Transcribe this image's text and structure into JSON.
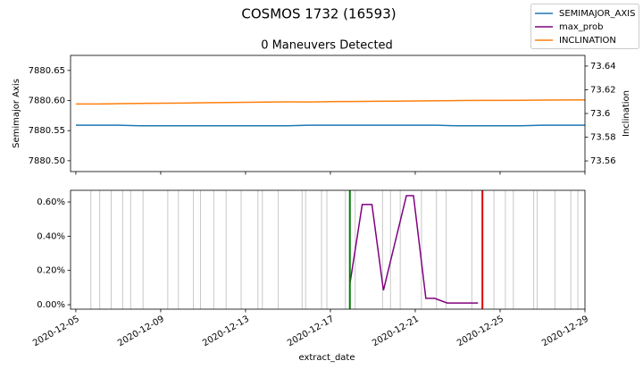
{
  "title": "COSMOS 1732 (16593)",
  "chart_data": [
    {
      "type": "line",
      "subtitle": "0 Maneuvers Detected",
      "ylabel": "Semimajor Axis",
      "y2label": "Inclination",
      "xlim": [
        "2020-12-04T18:00",
        "2020-12-29"
      ],
      "x": [
        "2020-12-05",
        "2020-12-06",
        "2020-12-07",
        "2020-12-08",
        "2020-12-09",
        "2020-12-10",
        "2020-12-11",
        "2020-12-12",
        "2020-12-13",
        "2020-12-14",
        "2020-12-15",
        "2020-12-16",
        "2020-12-17",
        "2020-12-18",
        "2020-12-19",
        "2020-12-20",
        "2020-12-21",
        "2020-12-22",
        "2020-12-23",
        "2020-12-24",
        "2020-12-25",
        "2020-12-26",
        "2020-12-27",
        "2020-12-28",
        "2020-12-29"
      ],
      "ylim": [
        7880.482,
        7880.675
      ],
      "yticks": [
        {
          "value": 7880.5,
          "label": "7880.50"
        },
        {
          "value": 7880.55,
          "label": "7880.55"
        },
        {
          "value": 7880.6,
          "label": "7880.60"
        },
        {
          "value": 7880.65,
          "label": "7880.65"
        }
      ],
      "y2lim": [
        73.551,
        73.649
      ],
      "y2ticks": [
        73.56,
        73.58,
        73.6,
        73.62,
        73.64
      ],
      "series": [
        {
          "name": "SEMIMAJOR_AXIS",
          "color": "#1f77b4",
          "values": [
            7880.559,
            7880.559,
            7880.559,
            7880.558,
            7880.558,
            7880.558,
            7880.558,
            7880.558,
            7880.558,
            7880.558,
            7880.558,
            7880.559,
            7880.559,
            7880.559,
            7880.559,
            7880.559,
            7880.559,
            7880.559,
            7880.558,
            7880.558,
            7880.558,
            7880.558,
            7880.559,
            7880.559,
            7880.559
          ]
        },
        {
          "name": "INCLINATION",
          "color": "#ff7f0e",
          "axis": "y2",
          "values": [
            73.608,
            73.608,
            73.6083,
            73.6085,
            73.6087,
            73.6088,
            73.609,
            73.6092,
            73.6094,
            73.6096,
            73.6098,
            73.6097,
            73.61,
            73.6101,
            73.6103,
            73.6104,
            73.6106,
            73.6107,
            73.6109,
            73.611,
            73.611,
            73.6111,
            73.6113,
            73.6114,
            73.6115
          ]
        }
      ]
    },
    {
      "type": "line",
      "xlabel": "extract_date",
      "xlim": [
        "2020-12-04T18:00",
        "2020-12-29"
      ],
      "xticks": [
        "2020-12-05",
        "2020-12-09",
        "2020-12-13",
        "2020-12-17",
        "2020-12-21",
        "2020-12-25",
        "2020-12-29"
      ],
      "ylim": [
        -0.026,
        0.668
      ],
      "yticks": [
        {
          "value": 0,
          "label": "0.00%"
        },
        {
          "value": 0.2,
          "label": "0.20%"
        },
        {
          "value": 0.4,
          "label": "0.40%"
        },
        {
          "value": 0.6,
          "label": "0.60%"
        }
      ],
      "x": [
        "2020-12-17T22:00",
        "2020-12-18T12:00",
        "2020-12-18T23:00",
        "2020-12-19T12:00",
        "2020-12-20T14:00",
        "2020-12-20T22:00",
        "2020-12-21T12:00",
        "2020-12-21T22:00",
        "2020-12-22T12:00",
        "2020-12-23T23:00"
      ],
      "series": [
        {
          "name": "max_prob",
          "color": "#800080",
          "values": [
            0.12,
            0.585,
            0.585,
            0.084,
            0.637,
            0.637,
            0.037,
            0.037,
            0.01,
            0.01
          ]
        }
      ],
      "event_color": "#c8c8c8",
      "events": [
        "2020-12-05T17:00",
        "2020-12-06T03:00",
        "2020-12-06T16:00",
        "2020-12-07T05:00",
        "2020-12-07T14:00",
        "2020-12-08T04:00",
        "2020-12-09T08:00",
        "2020-12-09T20:00",
        "2020-12-10T13:00",
        "2020-12-10T21:00",
        "2020-12-11T12:00",
        "2020-12-12T02:00",
        "2020-12-12T19:00",
        "2020-12-13T14:00",
        "2020-12-13T19:00",
        "2020-12-14T13:00",
        "2020-12-15T16:00",
        "2020-12-15T20:00",
        "2020-12-16T14:00",
        "2020-12-16T20:00",
        "2020-12-17T17:00",
        "2020-12-18T04:00",
        "2020-12-19T11:00",
        "2020-12-19T20:00",
        "2020-12-20T07:00",
        "2020-12-21T07:00",
        "2020-12-22T00:00",
        "2020-12-22T11:00",
        "2020-12-23T16:00",
        "2020-12-24T17:00",
        "2020-12-25T06:00",
        "2020-12-25T15:00",
        "2020-12-26T14:00",
        "2020-12-26T18:00",
        "2020-12-27T14:00",
        "2020-12-28T08:00",
        "2020-12-28T16:00"
      ],
      "markers": [
        {
          "x": "2020-12-17T22:00",
          "color": "#008000"
        },
        {
          "x": "2020-12-24T04:00",
          "color": "#e00000"
        }
      ]
    }
  ]
}
